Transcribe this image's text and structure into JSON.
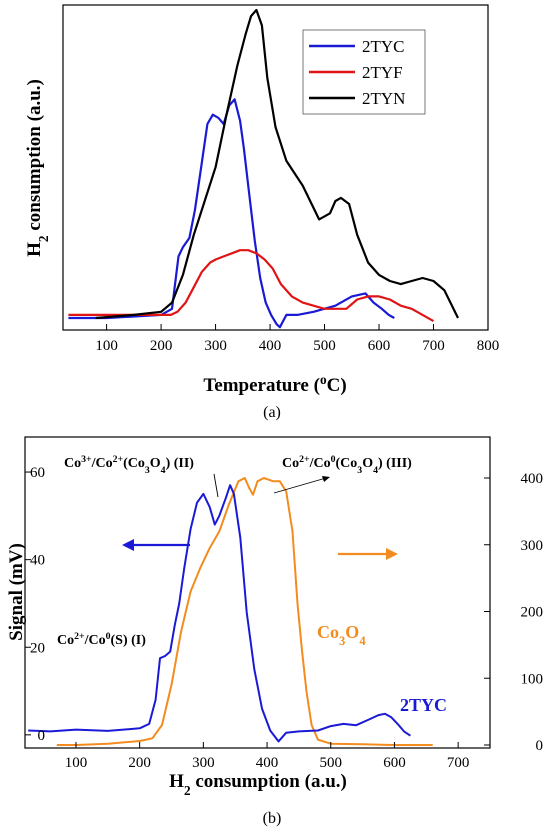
{
  "colors": {
    "blue": "#1a1ad6",
    "red": "#e01414",
    "black": "#000000",
    "orange": "#f28c1e"
  },
  "chart_data": [
    {
      "type": "line",
      "caption": "(a)",
      "xlabel": "Temperature (°C)",
      "ylabel": "H2 consumption (a.u.)",
      "xlim": [
        20,
        800
      ],
      "ylim": [
        0,
        1
      ],
      "xticks": [
        100,
        200,
        300,
        400,
        500,
        600,
        700,
        800
      ],
      "legend_position": "top-right",
      "series": [
        {
          "name": "2TYC",
          "color": "#1a1ad6",
          "x": [
            30,
            100,
            200,
            220,
            232,
            240,
            252,
            262,
            272,
            285,
            295,
            305,
            315,
            325,
            335,
            345,
            352,
            362,
            372,
            382,
            392,
            402,
            412,
            418,
            430,
            450,
            480,
            520,
            550,
            575,
            590,
            605,
            618,
            628
          ],
          "y": [
            0.0,
            0.0,
            0.01,
            0.03,
            0.2,
            0.23,
            0.26,
            0.35,
            0.47,
            0.63,
            0.66,
            0.65,
            0.63,
            0.69,
            0.71,
            0.64,
            0.55,
            0.4,
            0.25,
            0.13,
            0.05,
            0.01,
            -0.02,
            -0.03,
            0.01,
            0.01,
            0.02,
            0.04,
            0.07,
            0.08,
            0.05,
            0.03,
            0.01,
            0.0
          ]
        },
        {
          "name": "2TYF",
          "color": "#e01414",
          "x": [
            30,
            100,
            150,
            200,
            218,
            230,
            245,
            260,
            275,
            290,
            300,
            315,
            330,
            345,
            360,
            375,
            390,
            405,
            420,
            440,
            460,
            480,
            500,
            520,
            540,
            560,
            580,
            600,
            620,
            640,
            660,
            680,
            700
          ],
          "y": [
            0.01,
            0.01,
            0.01,
            0.01,
            0.01,
            0.02,
            0.05,
            0.1,
            0.15,
            0.18,
            0.19,
            0.2,
            0.21,
            0.22,
            0.22,
            0.21,
            0.19,
            0.16,
            0.11,
            0.07,
            0.05,
            0.04,
            0.03,
            0.03,
            0.03,
            0.06,
            0.07,
            0.07,
            0.06,
            0.04,
            0.03,
            0.01,
            -0.01
          ]
        },
        {
          "name": "2TYN",
          "color": "#000000",
          "x": [
            80,
            150,
            200,
            220,
            240,
            260,
            280,
            300,
            320,
            340,
            355,
            365,
            375,
            385,
            395,
            410,
            430,
            460,
            490,
            510,
            520,
            530,
            545,
            560,
            580,
            600,
            620,
            640,
            660,
            680,
            700,
            720,
            745
          ],
          "y": [
            0.0,
            0.01,
            0.02,
            0.05,
            0.14,
            0.27,
            0.38,
            0.49,
            0.66,
            0.82,
            0.92,
            0.98,
            1.0,
            0.95,
            0.78,
            0.62,
            0.51,
            0.43,
            0.32,
            0.34,
            0.38,
            0.39,
            0.37,
            0.27,
            0.18,
            0.14,
            0.12,
            0.11,
            0.12,
            0.13,
            0.12,
            0.09,
            0.0
          ]
        }
      ]
    },
    {
      "type": "line",
      "caption": "(b)",
      "xlabel": "H2 consumption (a.u.)",
      "ylabel": "Signal (mV)",
      "xlim": [
        20,
        750
      ],
      "ylim": [
        -3,
        68
      ],
      "y2lim": [
        0,
        450
      ],
      "xticks": [
        100,
        200,
        300,
        400,
        500,
        600,
        700
      ],
      "yticks": [
        0,
        20,
        40,
        60
      ],
      "y2ticks": [
        0,
        100,
        200,
        300,
        400
      ],
      "series": [
        {
          "name": "2TYC",
          "color": "#1a1ad6",
          "axis": "left",
          "x": [
            25,
            60,
            100,
            150,
            200,
            215,
            225,
            232,
            240,
            248,
            255,
            262,
            270,
            280,
            290,
            300,
            310,
            318,
            325,
            335,
            342,
            348,
            358,
            368,
            380,
            392,
            405,
            418,
            430,
            450,
            480,
            500,
            520,
            540,
            560,
            575,
            585,
            595,
            605,
            615,
            625
          ],
          "y": [
            1.0,
            0.8,
            1.2,
            0.9,
            1.5,
            2.5,
            8.0,
            17.5,
            18.0,
            19.0,
            25.0,
            30.0,
            38.0,
            47.0,
            53.0,
            55.0,
            52.0,
            48.0,
            50.0,
            54.0,
            57.0,
            55.0,
            45.0,
            28.0,
            15.0,
            6.0,
            1.0,
            -1.5,
            0.5,
            0.8,
            1.0,
            2.0,
            2.5,
            2.2,
            3.5,
            4.5,
            4.8,
            4.0,
            2.5,
            0.8,
            -0.2
          ]
        },
        {
          "name": "Co3O4",
          "color": "#f28c1e",
          "axis": "right",
          "x": [
            70,
            100,
            150,
            200,
            220,
            235,
            250,
            265,
            280,
            295,
            310,
            325,
            340,
            355,
            365,
            372,
            378,
            385,
            395,
            410,
            420,
            430,
            440,
            448,
            455,
            462,
            470,
            480,
            500,
            550,
            600,
            650,
            660
          ],
          "y": [
            0,
            0,
            2,
            6,
            10,
            30,
            90,
            170,
            230,
            265,
            295,
            320,
            360,
            395,
            400,
            385,
            375,
            395,
            400,
            395,
            395,
            380,
            320,
            210,
            140,
            80,
            30,
            8,
            2,
            1,
            0,
            0,
            0
          ]
        }
      ]
    }
  ],
  "plot_a": {
    "caption": "(a)",
    "xlabel_main": "Temperature (",
    "xlabel_sup": "o",
    "xlabel_end": "C)",
    "ylabel_main": "H",
    "ylabel_sub": "2",
    "ylabel_end": " consumption (a.u.)",
    "xtick_labels": [
      "100",
      "200",
      "300",
      "400",
      "500",
      "600",
      "700",
      "800"
    ],
    "legend": [
      "2TYC",
      "2TYF",
      "2TYN"
    ]
  },
  "plot_b": {
    "caption": "(b)",
    "xlabel_main": "H",
    "xlabel_sub": "2",
    "xlabel_end": " consumption (a.u.)",
    "ylabel": "Signal (mV)",
    "xtick_labels": [
      "100",
      "200",
      "300",
      "400",
      "500",
      "600",
      "700"
    ],
    "ytick_labels": [
      "0",
      "20",
      "40",
      "60"
    ],
    "y2tick_labels": [
      "0",
      "100",
      "200",
      "300",
      "400"
    ],
    "series_label_co": "Co",
    "series_label_co_sub": "3",
    "series_label_o": "O",
    "series_label_o_sub": "4",
    "series_label_2tyc": "2TYC",
    "annotations": {
      "ann1": "Co3+/Co2+(Co3O4) (II)",
      "ann2": "Co2+/Co0(Co3O4) (III)",
      "ann3": "Co2+/Co0(S) (I)"
    }
  }
}
